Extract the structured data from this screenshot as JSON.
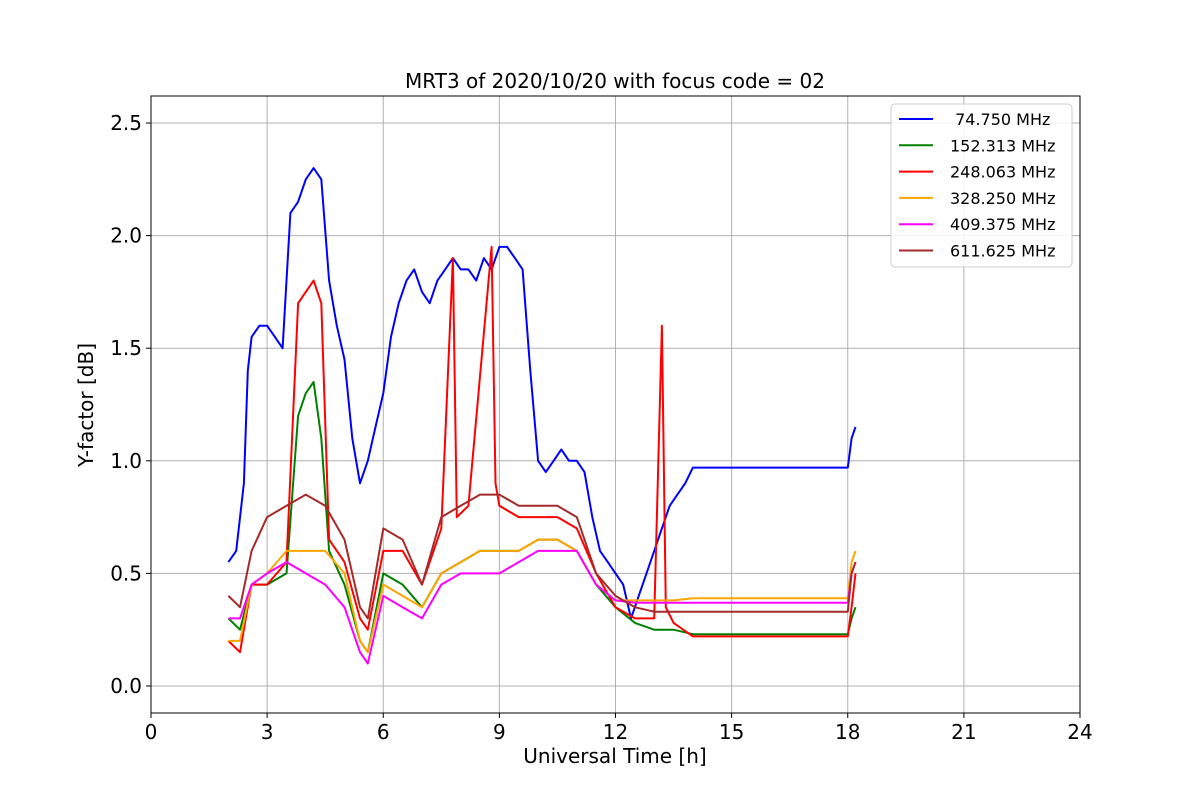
{
  "chart_data": {
    "type": "line",
    "title": "MRT3 of 2020/10/20 with focus code = 02",
    "xlabel": "Universal Time [h]",
    "ylabel": "Y-factor [dB]",
    "xlim": [
      0,
      24
    ],
    "ylim": [
      -0.12,
      2.62
    ],
    "xticks": [
      0,
      3,
      6,
      9,
      12,
      15,
      18,
      21,
      24
    ],
    "xtick_labels": [
      "0",
      "3",
      "6",
      "9",
      "12",
      "15",
      "18",
      "21",
      "24"
    ],
    "yticks": [
      0.0,
      0.5,
      1.0,
      1.5,
      2.0,
      2.5
    ],
    "ytick_labels": [
      "0.0",
      "0.5",
      "1.0",
      "1.5",
      "2.0",
      "2.5"
    ],
    "grid": true,
    "legend_position": "top-right",
    "series": [
      {
        "name": " 74.750 MHz",
        "color": "#0000ff",
        "x": [
          2.0,
          2.2,
          2.4,
          2.5,
          2.6,
          2.8,
          3.0,
          3.2,
          3.4,
          3.6,
          3.8,
          4.0,
          4.2,
          4.4,
          4.6,
          4.8,
          5.0,
          5.2,
          5.4,
          5.6,
          5.8,
          6.0,
          6.2,
          6.4,
          6.6,
          6.8,
          7.0,
          7.2,
          7.4,
          7.6,
          7.8,
          8.0,
          8.2,
          8.4,
          8.6,
          8.8,
          9.0,
          9.2,
          9.4,
          9.6,
          9.8,
          10.0,
          10.2,
          10.4,
          10.6,
          10.8,
          11.0,
          11.2,
          11.4,
          11.6,
          11.8,
          12.0,
          12.2,
          12.4,
          12.6,
          12.8,
          13.0,
          13.2,
          13.4,
          13.6,
          13.8,
          14.0,
          18.0,
          18.1,
          18.2
        ],
        "y": [
          0.55,
          0.6,
          0.9,
          1.4,
          1.55,
          1.6,
          1.6,
          1.55,
          1.5,
          2.1,
          2.15,
          2.25,
          2.3,
          2.25,
          1.8,
          1.6,
          1.45,
          1.1,
          0.9,
          1.0,
          1.15,
          1.3,
          1.55,
          1.7,
          1.8,
          1.85,
          1.75,
          1.7,
          1.8,
          1.85,
          1.9,
          1.85,
          1.85,
          1.8,
          1.9,
          1.85,
          1.95,
          1.95,
          1.9,
          1.85,
          1.4,
          1.0,
          0.95,
          1.0,
          1.05,
          1.0,
          1.0,
          0.95,
          0.75,
          0.6,
          0.55,
          0.5,
          0.45,
          0.3,
          0.4,
          0.5,
          0.6,
          0.7,
          0.8,
          0.85,
          0.9,
          0.97,
          0.97,
          1.1,
          1.15
        ]
      },
      {
        "name": "152.313 MHz",
        "color": "#008000",
        "x": [
          2.0,
          2.3,
          2.6,
          3.0,
          3.5,
          3.8,
          4.0,
          4.2,
          4.4,
          4.6,
          5.0,
          5.4,
          5.6,
          6.0,
          6.5,
          7.0,
          7.5,
          8.0,
          8.5,
          9.0,
          9.5,
          10.0,
          10.5,
          11.0,
          11.5,
          12.0,
          12.5,
          13.0,
          13.5,
          14.0,
          18.0,
          18.1,
          18.2
        ],
        "y": [
          0.3,
          0.25,
          0.45,
          0.45,
          0.5,
          1.2,
          1.3,
          1.35,
          1.1,
          0.6,
          0.45,
          0.2,
          0.15,
          0.5,
          0.45,
          0.35,
          0.5,
          0.55,
          0.6,
          0.6,
          0.6,
          0.65,
          0.65,
          0.6,
          0.45,
          0.35,
          0.28,
          0.25,
          0.25,
          0.23,
          0.23,
          0.3,
          0.35
        ]
      },
      {
        "name": "248.063 MHz",
        "color": "#ff0000",
        "x": [
          2.0,
          2.3,
          2.6,
          3.0,
          3.5,
          3.8,
          4.0,
          4.2,
          4.4,
          4.6,
          5.0,
          5.4,
          5.6,
          6.0,
          6.5,
          7.0,
          7.5,
          7.8,
          7.9,
          8.2,
          8.8,
          8.9,
          9.0,
          9.5,
          10.0,
          10.5,
          11.0,
          11.5,
          12.0,
          12.5,
          13.0,
          13.2,
          13.3,
          13.5,
          14.0,
          18.0,
          18.1,
          18.2
        ],
        "y": [
          0.2,
          0.15,
          0.45,
          0.45,
          0.55,
          1.7,
          1.75,
          1.8,
          1.7,
          0.65,
          0.55,
          0.3,
          0.25,
          0.6,
          0.6,
          0.45,
          0.7,
          1.9,
          0.75,
          0.8,
          1.95,
          0.9,
          0.8,
          0.75,
          0.75,
          0.75,
          0.7,
          0.5,
          0.35,
          0.3,
          0.3,
          1.6,
          0.35,
          0.28,
          0.22,
          0.22,
          0.35,
          0.5
        ]
      },
      {
        "name": "328.250 MHz",
        "color": "#ffa500",
        "x": [
          2.0,
          2.3,
          2.6,
          3.0,
          3.5,
          4.0,
          4.5,
          5.0,
          5.4,
          5.6,
          6.0,
          6.5,
          7.0,
          7.5,
          8.0,
          8.5,
          9.0,
          9.5,
          10.0,
          10.5,
          11.0,
          11.5,
          12.0,
          12.5,
          13.0,
          13.5,
          14.0,
          18.0,
          18.1,
          18.2
        ],
        "y": [
          0.2,
          0.2,
          0.45,
          0.5,
          0.6,
          0.6,
          0.6,
          0.5,
          0.2,
          0.15,
          0.45,
          0.4,
          0.35,
          0.5,
          0.55,
          0.6,
          0.6,
          0.6,
          0.65,
          0.65,
          0.6,
          0.45,
          0.38,
          0.38,
          0.38,
          0.38,
          0.39,
          0.39,
          0.55,
          0.6
        ]
      },
      {
        "name": "409.375 MHz",
        "color": "#ff00ff",
        "x": [
          2.0,
          2.3,
          2.6,
          3.0,
          3.5,
          4.0,
          4.5,
          5.0,
          5.4,
          5.6,
          6.0,
          6.5,
          7.0,
          7.5,
          8.0,
          8.5,
          9.0,
          9.5,
          10.0,
          10.5,
          11.0,
          11.5,
          12.0,
          12.5,
          13.0,
          13.5,
          14.0,
          18.0,
          18.1,
          18.2
        ],
        "y": [
          0.3,
          0.3,
          0.45,
          0.5,
          0.55,
          0.5,
          0.45,
          0.35,
          0.15,
          0.1,
          0.4,
          0.35,
          0.3,
          0.45,
          0.5,
          0.5,
          0.5,
          0.55,
          0.6,
          0.6,
          0.6,
          0.45,
          0.38,
          0.37,
          0.37,
          0.37,
          0.37,
          0.37,
          0.5,
          0.55
        ]
      },
      {
        "name": "611.625 MHz",
        "color": "#a52a2a",
        "x": [
          2.0,
          2.3,
          2.6,
          3.0,
          3.5,
          4.0,
          4.5,
          5.0,
          5.4,
          5.6,
          6.0,
          6.5,
          7.0,
          7.5,
          8.0,
          8.5,
          9.0,
          9.5,
          10.0,
          10.5,
          11.0,
          11.5,
          12.0,
          12.5,
          13.0,
          13.5,
          14.0,
          18.0,
          18.1,
          18.2
        ],
        "y": [
          0.4,
          0.35,
          0.6,
          0.75,
          0.8,
          0.85,
          0.8,
          0.65,
          0.35,
          0.3,
          0.7,
          0.65,
          0.45,
          0.75,
          0.8,
          0.85,
          0.85,
          0.8,
          0.8,
          0.8,
          0.75,
          0.5,
          0.4,
          0.35,
          0.33,
          0.33,
          0.33,
          0.33,
          0.5,
          0.55
        ]
      }
    ]
  }
}
